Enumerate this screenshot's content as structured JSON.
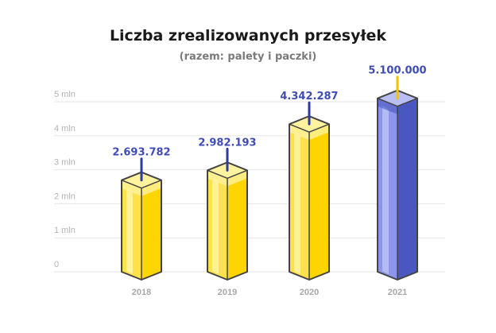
{
  "chart_data": {
    "type": "bar",
    "title": "Liczba zrealizowanych przesyłek",
    "subtitle": "(razem: palety i paczki)",
    "categories": [
      "2018",
      "2019",
      "2020",
      "2021"
    ],
    "values": [
      2693782,
      2982193,
      4342287,
      5100000
    ],
    "data_labels": [
      "2.693.782",
      "2.982.193",
      "4.342.287",
      "5.100.000"
    ],
    "y_ticks": [
      {
        "value": 0,
        "label": "0"
      },
      {
        "value": 1000000,
        "label": "1 mln"
      },
      {
        "value": 2000000,
        "label": "2 mln"
      },
      {
        "value": 3000000,
        "label": "3 mln"
      },
      {
        "value": 4000000,
        "label": "4 mln"
      },
      {
        "value": 5000000,
        "label": "5 mln"
      }
    ],
    "ylim": [
      0,
      5000000
    ],
    "grid": true,
    "xlabel": "",
    "ylabel": "",
    "colors": {
      "yellow_front": "#ffe24a",
      "yellow_side": "#ffd500",
      "yellow_highlight": "#fff3a0",
      "blue_front": "#8b96ea",
      "blue_side": "#4a57c0",
      "blue_highlight": "#b8bff5",
      "outline": "#444444",
      "label_text": "#3f4db3",
      "yellow_line": "#2d3a9e",
      "blue_line": "#f2c400",
      "grid": "#e6e6e6"
    },
    "highlight_index": 3
  }
}
